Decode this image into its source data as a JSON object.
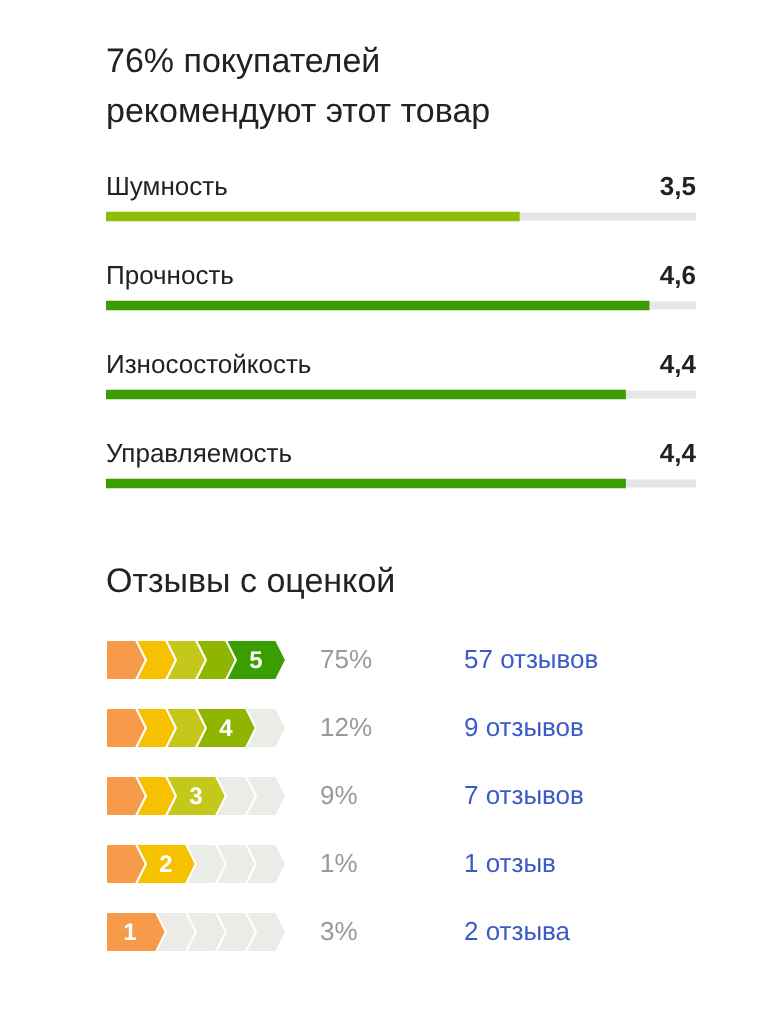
{
  "chart_data": [
    {
      "type": "bar",
      "orientation": "horizontal",
      "title": "76% покупателей рекомендуют этот товар",
      "categories": [
        "Шумность",
        "Прочность",
        "Износостойкость",
        "Управляемость"
      ],
      "values": [
        3.5,
        4.6,
        4.4,
        4.4
      ],
      "colors": [
        "#8fbb00",
        "#3a9d00",
        "#3a9d00",
        "#3a9d00"
      ],
      "value_labels": [
        "3,5",
        "4,6",
        "4,4",
        "4,4"
      ],
      "xlim": [
        0,
        5
      ],
      "tick_labels": false,
      "legend": false
    },
    {
      "type": "other",
      "title": "Отзывы с оценкой",
      "categories": [
        "5",
        "4",
        "3",
        "2",
        "1"
      ],
      "values": [
        75,
        12,
        9,
        1,
        3
      ],
      "value_labels": [
        "75%",
        "12%",
        "9%",
        "1%",
        "3%"
      ],
      "colors": [
        "#3a9d00",
        "#8fb500",
        "#c4c81a",
        "#f5c100",
        "#f79b4b"
      ],
      "annotations": [
        "57 отзывов",
        "9 отзывов",
        "7 отзывов",
        "1 отзыв",
        "2 отзыва"
      ]
    }
  ]
}
